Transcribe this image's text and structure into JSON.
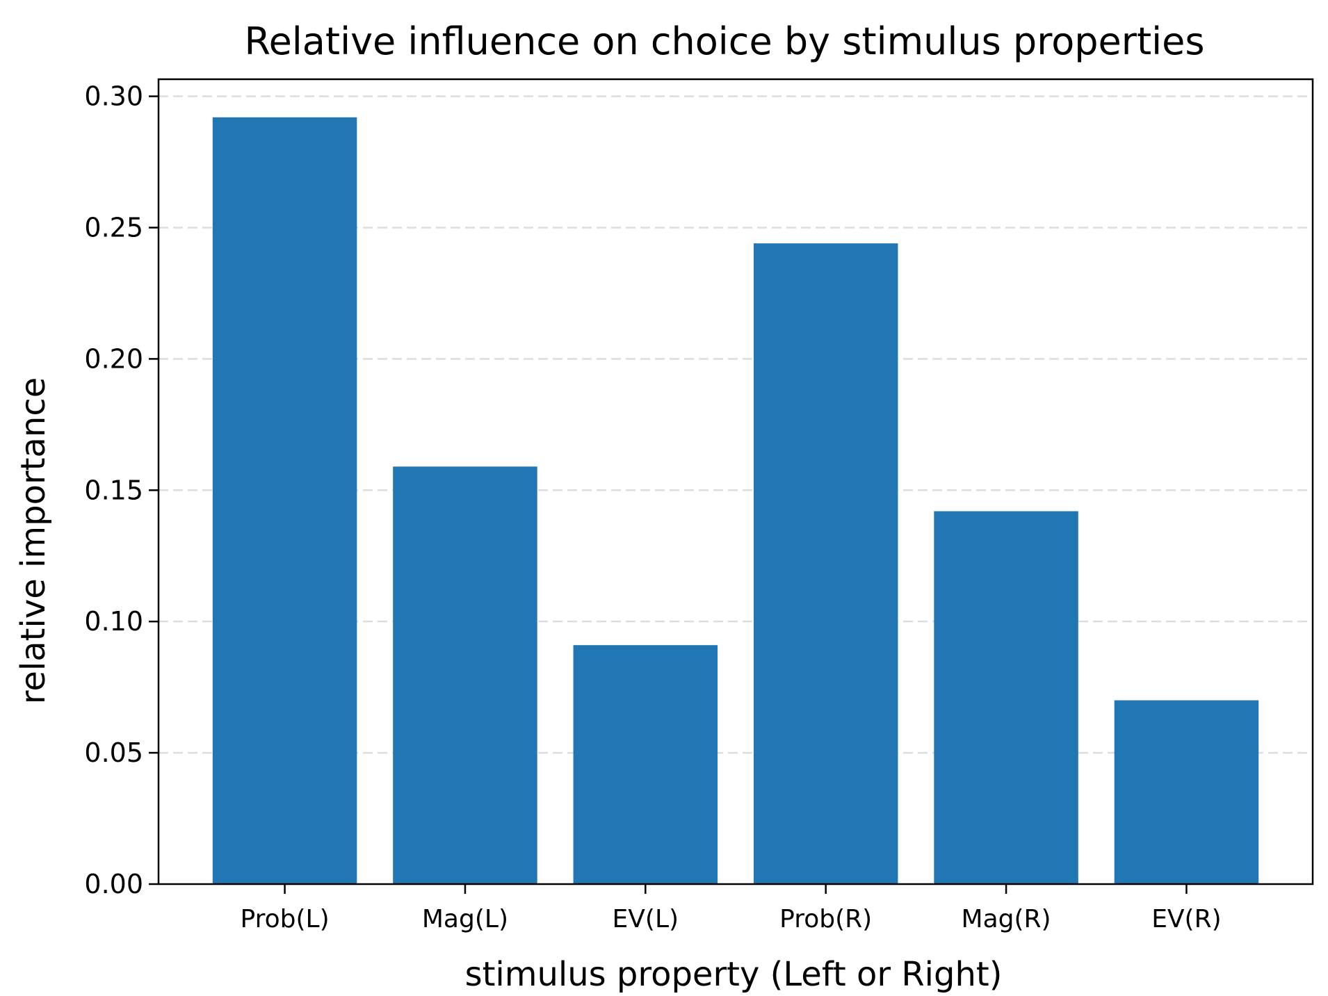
{
  "chart_data": {
    "type": "bar",
    "title": "Relative influence on choice by stimulus properties",
    "xlabel": "stimulus property (Left or Right)",
    "ylabel": "relative importance",
    "categories": [
      "Prob(L)",
      "Mag(L)",
      "EV(L)",
      "Prob(R)",
      "Mag(R)",
      "EV(R)"
    ],
    "values": [
      0.292,
      0.159,
      0.091,
      0.244,
      0.142,
      0.07
    ],
    "ylim": [
      0,
      0.3065
    ],
    "yticks": [
      0.0,
      0.05,
      0.1,
      0.15,
      0.2,
      0.25,
      0.3
    ],
    "ytick_labels": [
      "0.00",
      "0.05",
      "0.10",
      "0.15",
      "0.20",
      "0.25",
      "0.30"
    ],
    "grid": "y-dashed",
    "bar_color": "#2077b4",
    "grid_color": "#dddddd",
    "axis_color": "#000000"
  }
}
